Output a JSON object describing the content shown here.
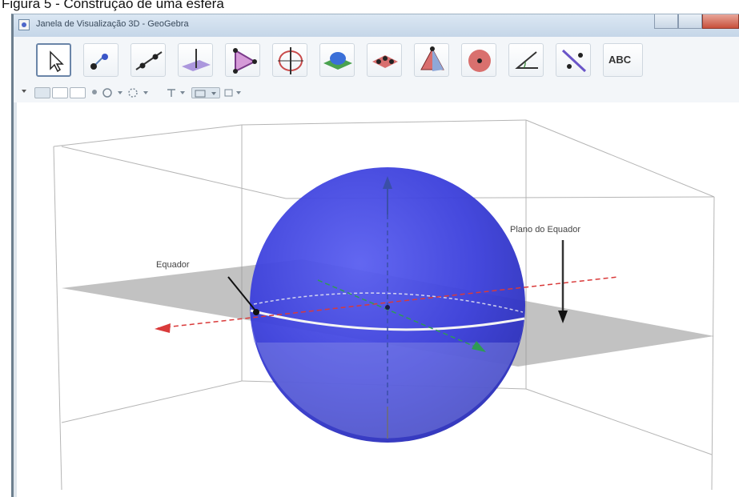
{
  "caption": "Figura 5 - Construção de uma esfera",
  "window": {
    "title": "Janela de Visualização 3D - GeoGebra",
    "app_icon": "geogebra-icon"
  },
  "toolbar": {
    "tools": [
      {
        "name": "move-tool",
        "icon": "pointer-icon"
      },
      {
        "name": "point-tool",
        "icon": "point-icon"
      },
      {
        "name": "line-tool",
        "icon": "line-icon"
      },
      {
        "name": "perpendicular-tool",
        "icon": "perpendicular-icon"
      },
      {
        "name": "polygon-tool",
        "icon": "triangle-icon"
      },
      {
        "name": "circle-tool",
        "icon": "circle-axis-icon"
      },
      {
        "name": "plane-tool",
        "icon": "plane-icon"
      },
      {
        "name": "solid-tool",
        "icon": "solid-icon"
      },
      {
        "name": "pyramid-tool",
        "icon": "pyramid-icon"
      },
      {
        "name": "sphere-tool",
        "icon": "sphere-icon"
      },
      {
        "name": "angle-tool",
        "icon": "angle-icon"
      },
      {
        "name": "reflect-tool",
        "icon": "reflect-icon"
      },
      {
        "name": "text-tool",
        "icon": "text-icon",
        "label": "ABC"
      }
    ]
  },
  "graphics": {
    "labels": {
      "equator": "Equador",
      "equator_plane": "Plano do Equador"
    },
    "colors": {
      "sphere": "#3b3fdb",
      "plane": "#9a9a9a",
      "axis_x": "#d93a3a",
      "axis_y": "#2f9a55",
      "axis_z": "#3a4fa8"
    }
  }
}
